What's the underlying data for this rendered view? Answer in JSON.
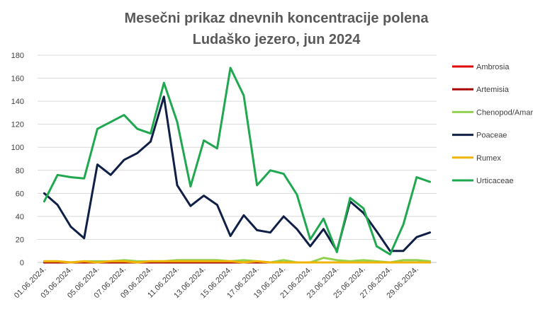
{
  "chart_data": {
    "type": "line",
    "title_lines": [
      "Mesečni prikaz dnevnih koncentracije polena",
      "Ludaško jezero, jun 2024"
    ],
    "xlabel": "",
    "ylabel": "",
    "ylim": [
      0,
      180
    ],
    "yticks": [
      0,
      20,
      40,
      60,
      80,
      100,
      120,
      140,
      160,
      180
    ],
    "grid": true,
    "legend_position": "right",
    "x": [
      "01.06.2024.",
      "02.06.2024.",
      "03.06.2024.",
      "04.06.2024.",
      "05.06.2024.",
      "06.06.2024.",
      "07.06.2024.",
      "08.06.2024.",
      "09.06.2024.",
      "10.06.2024.",
      "11.06.2024.",
      "12.06.2024.",
      "13.06.2024.",
      "14.06.2024.",
      "15.06.2024.",
      "16.06.2024.",
      "17.06.2024.",
      "18.06.2024.",
      "19.06.2024.",
      "20.06.2024.",
      "21.06.2024.",
      "22.06.2024.",
      "23.06.2024.",
      "24.06.2024.",
      "25.06.2024.",
      "26.06.2024.",
      "27.06.2024.",
      "28.06.2024.",
      "29.06.2024.",
      "30.06.2024."
    ],
    "x_tick_labels": [
      "01.06.2024.",
      "03.06.2024.",
      "05.06.2024.",
      "07.06.2024.",
      "09.06.2024.",
      "11.06.2024.",
      "13.06.2024.",
      "15.06.2024.",
      "17.06.2024.",
      "19.06.2024.",
      "21.06.2024.",
      "23.06.2024.",
      "25.06.2024.",
      "27.06.2024.",
      "29.06.2024."
    ],
    "series": [
      {
        "name": "Ambrosia",
        "color": "#e00000",
        "values": [
          0,
          0,
          0,
          0,
          0,
          0,
          0,
          0,
          0,
          0,
          0,
          0,
          0,
          0,
          0,
          0,
          0,
          0,
          0,
          0,
          0,
          0,
          0,
          0,
          0,
          0,
          0,
          0,
          0,
          0
        ]
      },
      {
        "name": "Artemisia",
        "color": "#a50000",
        "values": [
          0,
          0,
          0,
          0,
          0,
          0,
          0,
          0,
          0,
          0,
          0,
          0,
          0,
          0,
          0,
          0,
          0,
          0,
          0,
          0,
          0,
          0,
          0,
          0,
          0,
          0,
          0,
          0,
          0,
          0
        ]
      },
      {
        "name": "Chenopod/Amar",
        "color": "#92d050",
        "values": [
          1,
          1,
          0,
          1,
          1,
          1,
          2,
          1,
          1,
          1,
          2,
          2,
          2,
          2,
          1,
          2,
          1,
          0,
          2,
          0,
          0,
          4,
          2,
          1,
          2,
          1,
          0,
          2,
          2,
          1
        ]
      },
      {
        "name": "Poaceae",
        "color": "#0f1f45",
        "values": [
          60,
          50,
          31,
          21,
          85,
          76,
          89,
          95,
          105,
          144,
          67,
          49,
          58,
          50,
          23,
          41,
          28,
          26,
          40,
          29,
          14,
          29,
          10,
          53,
          43,
          27,
          10,
          10,
          22,
          26
        ]
      },
      {
        "name": "Rumex",
        "color": "#f0b400",
        "values": [
          1,
          1,
          0,
          1,
          0,
          1,
          1,
          0,
          1,
          1,
          1,
          1,
          1,
          1,
          1,
          0,
          1,
          0,
          0,
          0,
          0,
          0,
          0,
          0,
          0,
          0,
          0,
          0,
          0,
          0
        ]
      },
      {
        "name": "Urticaceae",
        "color": "#1fa84f",
        "values": [
          53,
          76,
          74,
          73,
          116,
          122,
          128,
          116,
          112,
          156,
          122,
          66,
          106,
          99,
          169,
          145,
          67,
          80,
          77,
          59,
          20,
          38,
          9,
          56,
          47,
          14,
          7,
          33,
          74,
          70
        ]
      }
    ]
  }
}
